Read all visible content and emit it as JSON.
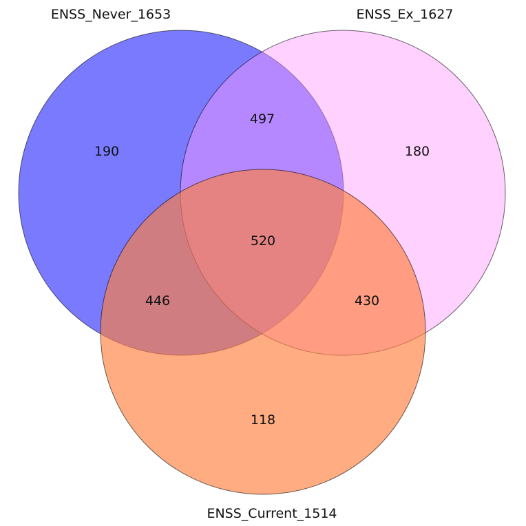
{
  "sets": [
    {
      "id": "never",
      "label": "ENSS_Never_1653",
      "color": "#5555ff",
      "opacity": 0.78
    },
    {
      "id": "ex",
      "label": "ENSS_Ex_1627",
      "color": "#ff99ff",
      "opacity": 0.45
    },
    {
      "id": "current",
      "label": "ENSS_Current_1514",
      "color": "#ff7f3f",
      "opacity": 0.65
    }
  ],
  "regions": {
    "never_only": "190",
    "ex_only": "180",
    "current_only": "118",
    "never_ex": "497",
    "never_current": "446",
    "ex_current": "430",
    "all_three": "520"
  }
}
